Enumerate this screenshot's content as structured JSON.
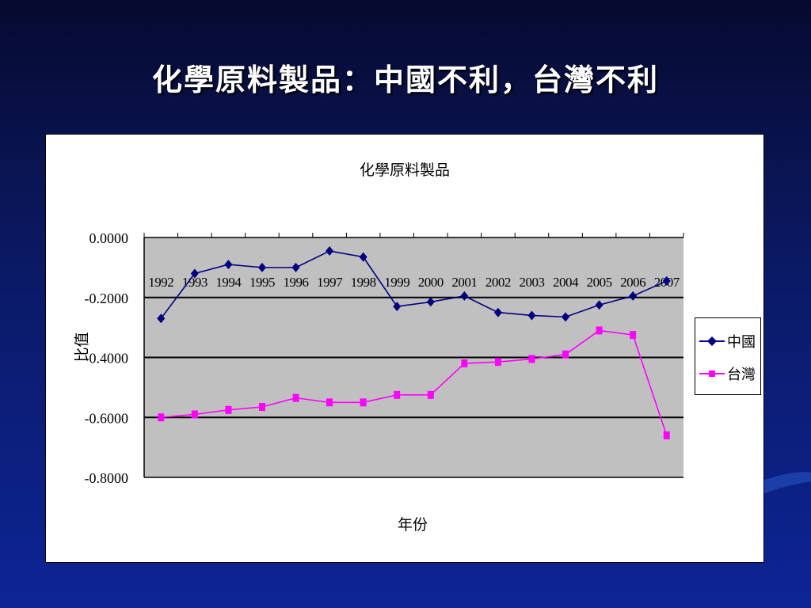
{
  "slide": {
    "title": "化學原料製品：中國不利，台灣不利"
  },
  "colors": {
    "background": "#0b1a66",
    "plot_area": "#c0c0c0",
    "china": "#000080",
    "taiwan": "#ff00ff"
  },
  "chart_data": {
    "type": "line",
    "title": "化學原料製品",
    "xlabel": "年份",
    "ylabel": "比值",
    "categories": [
      "1992",
      "1993",
      "1994",
      "1995",
      "1996",
      "1997",
      "1998",
      "1999",
      "2000",
      "2001",
      "2002",
      "2003",
      "2004",
      "2005",
      "2006",
      "2007"
    ],
    "y_ticks": [
      "0.0000",
      "-0.2000",
      "-0.4000",
      "-0.6000",
      "-0.8000"
    ],
    "ylim": [
      -0.8,
      0
    ],
    "grid": true,
    "legend_position": "right",
    "series": [
      {
        "name": "中國",
        "marker": "diamond",
        "values": [
          -0.27,
          -0.12,
          -0.09,
          -0.1,
          -0.1,
          -0.045,
          -0.065,
          -0.23,
          -0.215,
          -0.195,
          -0.25,
          -0.26,
          -0.265,
          -0.225,
          -0.195,
          -0.145
        ]
      },
      {
        "name": "台灣",
        "marker": "square",
        "values": [
          -0.6,
          -0.59,
          -0.575,
          -0.565,
          -0.535,
          -0.55,
          -0.55,
          -0.525,
          -0.525,
          -0.42,
          -0.415,
          -0.405,
          -0.39,
          -0.31,
          -0.325,
          -0.66
        ]
      }
    ]
  }
}
